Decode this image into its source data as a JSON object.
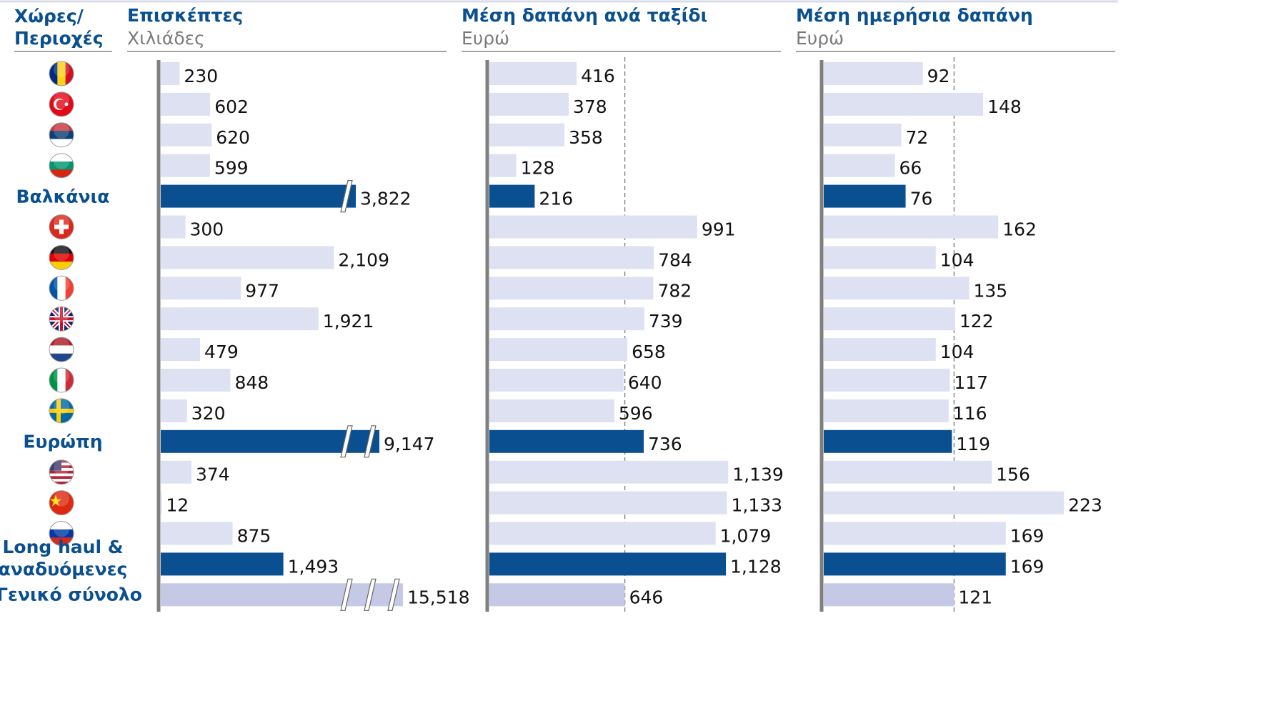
{
  "chart_data": [
    {
      "type": "bar",
      "orientation": "horizontal",
      "category_header": "Χώρες/\nΠεριοχές",
      "categories": [
        null,
        null,
        null,
        null,
        "Βαλκάνια",
        null,
        null,
        null,
        null,
        null,
        null,
        null,
        "Ευρώπη",
        null,
        null,
        null,
        "Long haul &\nαναδυόμενες",
        "Γενικό σύνολο"
      ],
      "title": "Επισκέπτες",
      "subtitle": "Χιλιάδες",
      "values": [
        230,
        602,
        620,
        599,
        3822,
        300,
        2109,
        977,
        1921,
        479,
        848,
        320,
        9147,
        374,
        12,
        875,
        1493,
        15518
      ],
      "value_labels": [
        "230",
        "602",
        "620",
        "599",
        "3,822",
        "300",
        "2,109",
        "977",
        "1,921",
        "479",
        "848",
        "320",
        "9,147",
        "374",
        "12",
        "875",
        "1,493",
        "15,518"
      ],
      "colors": [
        "#dde1f2",
        "#dde1f2",
        "#dde1f2",
        "#dde1f2",
        "#0a4f8f",
        "#dde1f2",
        "#dde1f2",
        "#dde1f2",
        "#dde1f2",
        "#dde1f2",
        "#dde1f2",
        "#dde1f2",
        "#0a4f8f",
        "#dde1f2",
        "#dde1f2",
        "#dde1f2",
        "#0a4f8f",
        "#c5c9e6"
      ],
      "xlim": [
        0,
        3480
      ],
      "axis_break": true
    },
    {
      "type": "bar",
      "orientation": "horizontal",
      "title": "Μέση δαπάνη ανά ταξίδι",
      "subtitle": "Ευρώ",
      "values": [
        416,
        378,
        358,
        128,
        216,
        991,
        784,
        782,
        739,
        658,
        640,
        596,
        736,
        1139,
        1133,
        1079,
        1128,
        646
      ],
      "value_labels": [
        "416",
        "378",
        "358",
        "128",
        "216",
        "991",
        "784",
        "782",
        "739",
        "658",
        "640",
        "596",
        "736",
        "1,139",
        "1,133",
        "1,079",
        "1,128",
        "646"
      ],
      "colors": [
        "#dde1f2",
        "#dde1f2",
        "#dde1f2",
        "#dde1f2",
        "#0a4f8f",
        "#dde1f2",
        "#dde1f2",
        "#dde1f2",
        "#dde1f2",
        "#dde1f2",
        "#dde1f2",
        "#dde1f2",
        "#0a4f8f",
        "#dde1f2",
        "#dde1f2",
        "#dde1f2",
        "#0a4f8f",
        "#c5c9e6"
      ],
      "xlim": [
        0,
        1380
      ],
      "reference_line": true
    },
    {
      "type": "bar",
      "orientation": "horizontal",
      "title": "Μέση ημερήσια δαπάνη",
      "subtitle": "Ευρώ",
      "values": [
        92,
        148,
        72,
        66,
        76,
        162,
        104,
        135,
        122,
        104,
        117,
        116,
        119,
        156,
        223,
        169,
        169,
        121
      ],
      "value_labels": [
        "92",
        "148",
        "72",
        "66",
        "76",
        "162",
        "104",
        "135",
        "122",
        "104",
        "117",
        "116",
        "119",
        "156",
        "223",
        "169",
        "169",
        "121"
      ],
      "colors": [
        "#dde1f2",
        "#dde1f2",
        "#dde1f2",
        "#dde1f2",
        "#0a4f8f",
        "#dde1f2",
        "#dde1f2",
        "#dde1f2",
        "#dde1f2",
        "#dde1f2",
        "#dde1f2",
        "#dde1f2",
        "#0a4f8f",
        "#dde1f2",
        "#dde1f2",
        "#dde1f2",
        "#0a4f8f",
        "#c5c9e6"
      ],
      "xlim": [
        0,
        270
      ],
      "reference_line": true
    }
  ]
}
